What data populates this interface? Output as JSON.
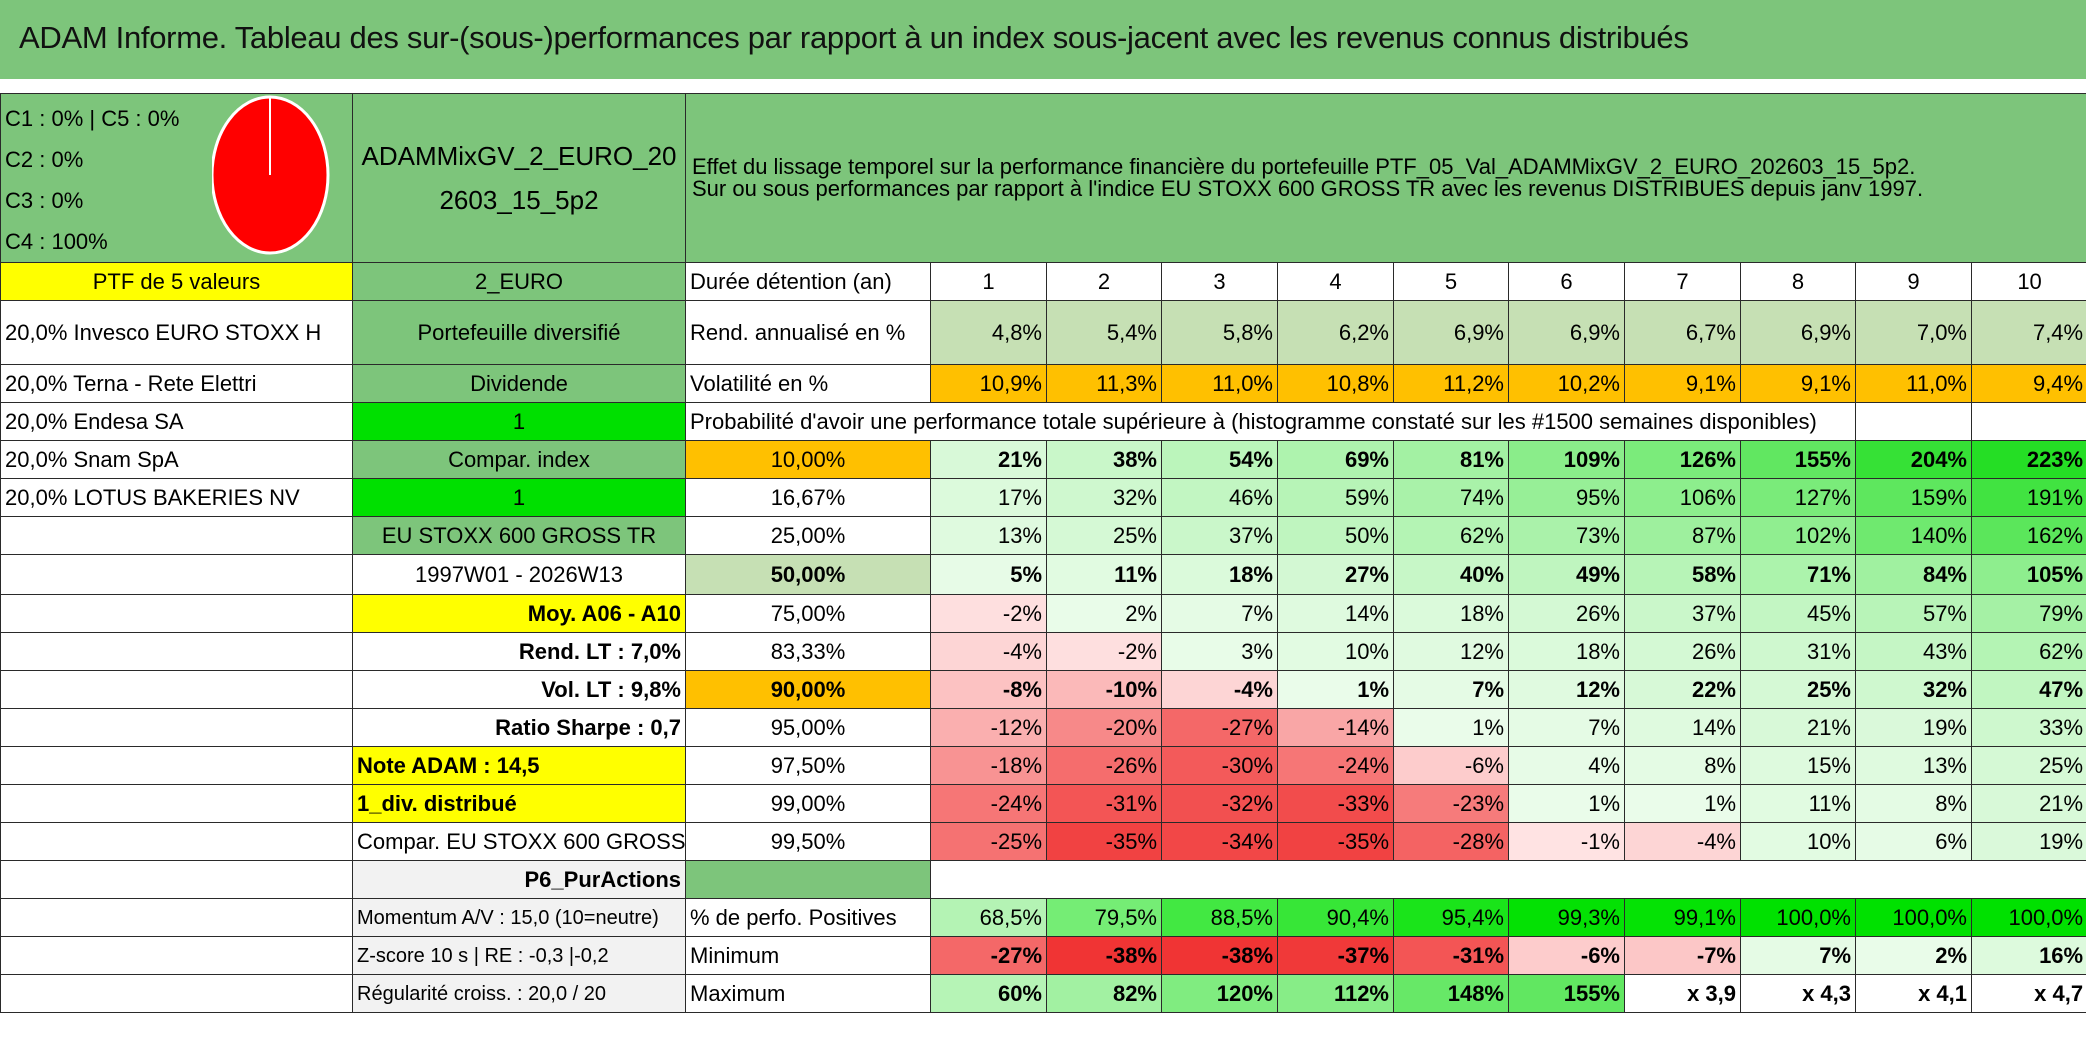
{
  "title": "ADAM Informe. Tableau des sur-(sous-)performances par rapport à un index sous-jacent avec les revenus connus distribués",
  "classes": [
    "C1 : 0% | C5 : 0%",
    "C2 : 0%",
    "C3 : 0%",
    "C4 : 100%"
  ],
  "pie": {
    "color": "#ff0000",
    "C4": 100
  },
  "portfolio_code": "ADAMMixGV_2_EURO_202603_15_5p2",
  "header_text": {
    "line1": "Effet du lissage temporel sur la performance financière du portefeuille PTF_05_Val_ADAMMixGV_2_EURO_202603_15_5p2.",
    "line2": "Sur ou sous performances par rapport à l'indice EU STOXX 600 GROSS TR avec les revenus DISTRIBUES depuis janv 1997."
  },
  "ptf_label": "PTF de 5 valeurs",
  "currency": "2_EURO",
  "holdings": [
    "20,0% Invesco EURO STOXX H",
    "20,0% Terna - Rete Elettri",
    "20,0% Endesa SA",
    "20,0% Snam SpA",
    "20,0% LOTUS BAKERIES NV"
  ],
  "infos": {
    "diversified": "Portefeuille diversifié",
    "dividend_label": "Dividende",
    "dividend_value": "1",
    "compar_label": "Compar. index",
    "compar_value": "1",
    "index_name": "EU STOXX 600 GROSS TR",
    "period": "1997W01 - 2026W13",
    "moy": "Moy. A06 - A10",
    "rend_lt": "Rend. LT : 7,0%",
    "vol_lt": "Vol. LT : 9,8%",
    "sharpe": "Ratio Sharpe : 0,7",
    "note": "Note ADAM : 14,5",
    "div": "1_div. distribué",
    "compar": "Compar. EU STOXX 600 GROSS TR",
    "p6": "P6_PurActions",
    "momentum": "Momentum A/V : 15,0 (10=neutre)",
    "zscore": "Z-score 10 s | RE : -0,3 |-0,2",
    "regularite": "Régularité croiss. : 20,0 / 20"
  },
  "duration_label": "Durée détention (an)",
  "years": [
    "1",
    "2",
    "3",
    "4",
    "5",
    "6",
    "7",
    "8",
    "9",
    "10"
  ],
  "rend_label": "Rend. annualisé en %",
  "rend": [
    "4,8%",
    "5,4%",
    "5,8%",
    "6,2%",
    "6,9%",
    "6,9%",
    "6,7%",
    "6,9%",
    "7,0%",
    "7,4%"
  ],
  "vol_label": "Volatilité en %",
  "vol": [
    "10,9%",
    "11,3%",
    "11,0%",
    "10,8%",
    "11,2%",
    "10,2%",
    "9,1%",
    "9,1%",
    "11,0%",
    "9,4%"
  ],
  "prob_title": "Probabilité d'avoir une performance totale supérieure à (histogramme constaté sur les #1500 semaines disponibles)",
  "quantiles": [
    {
      "q": "10,00%",
      "v": [
        "21%",
        "38%",
        "54%",
        "69%",
        "81%",
        "109%",
        "126%",
        "155%",
        "204%",
        "223%"
      ]
    },
    {
      "q": "16,67%",
      "v": [
        "17%",
        "32%",
        "46%",
        "59%",
        "74%",
        "95%",
        "106%",
        "127%",
        "159%",
        "191%"
      ]
    },
    {
      "q": "25,00%",
      "v": [
        "13%",
        "25%",
        "37%",
        "50%",
        "62%",
        "73%",
        "87%",
        "102%",
        "140%",
        "162%"
      ]
    },
    {
      "q": "50,00%",
      "v": [
        "5%",
        "11%",
        "18%",
        "27%",
        "40%",
        "49%",
        "58%",
        "71%",
        "84%",
        "105%"
      ]
    },
    {
      "q": "75,00%",
      "v": [
        "-2%",
        "2%",
        "7%",
        "14%",
        "18%",
        "26%",
        "37%",
        "45%",
        "57%",
        "79%"
      ]
    },
    {
      "q": "83,33%",
      "v": [
        "-4%",
        "-2%",
        "3%",
        "10%",
        "12%",
        "18%",
        "26%",
        "31%",
        "43%",
        "62%"
      ]
    },
    {
      "q": "90,00%",
      "v": [
        "-8%",
        "-10%",
        "-4%",
        "1%",
        "7%",
        "12%",
        "22%",
        "25%",
        "32%",
        "47%"
      ]
    },
    {
      "q": "95,00%",
      "v": [
        "-12%",
        "-20%",
        "-27%",
        "-14%",
        "1%",
        "7%",
        "14%",
        "21%",
        "19%",
        "33%"
      ]
    },
    {
      "q": "97,50%",
      "v": [
        "-18%",
        "-26%",
        "-30%",
        "-24%",
        "-6%",
        "4%",
        "8%",
        "15%",
        "13%",
        "25%"
      ]
    },
    {
      "q": "99,00%",
      "v": [
        "-24%",
        "-31%",
        "-32%",
        "-33%",
        "-23%",
        "1%",
        "1%",
        "11%",
        "8%",
        "21%"
      ]
    },
    {
      "q": "99,50%",
      "v": [
        "-25%",
        "-35%",
        "-34%",
        "-35%",
        "-28%",
        "-1%",
        "-4%",
        "10%",
        "6%",
        "19%"
      ]
    }
  ],
  "pos_label": "% de perfo. Positives",
  "pos": [
    "68,5%",
    "79,5%",
    "88,5%",
    "90,4%",
    "95,4%",
    "99,3%",
    "99,1%",
    "100,0%",
    "100,0%",
    "100,0%"
  ],
  "min_label": "Minimum",
  "min": [
    "-27%",
    "-38%",
    "-38%",
    "-37%",
    "-31%",
    "-6%",
    "-7%",
    "7%",
    "2%",
    "16%"
  ],
  "max_label": "Maximum",
  "max": [
    "60%",
    "82%",
    "120%",
    "112%",
    "148%",
    "155%",
    "x 3,9",
    "x 4,3",
    "x 4,1",
    "x 4,7"
  ]
}
